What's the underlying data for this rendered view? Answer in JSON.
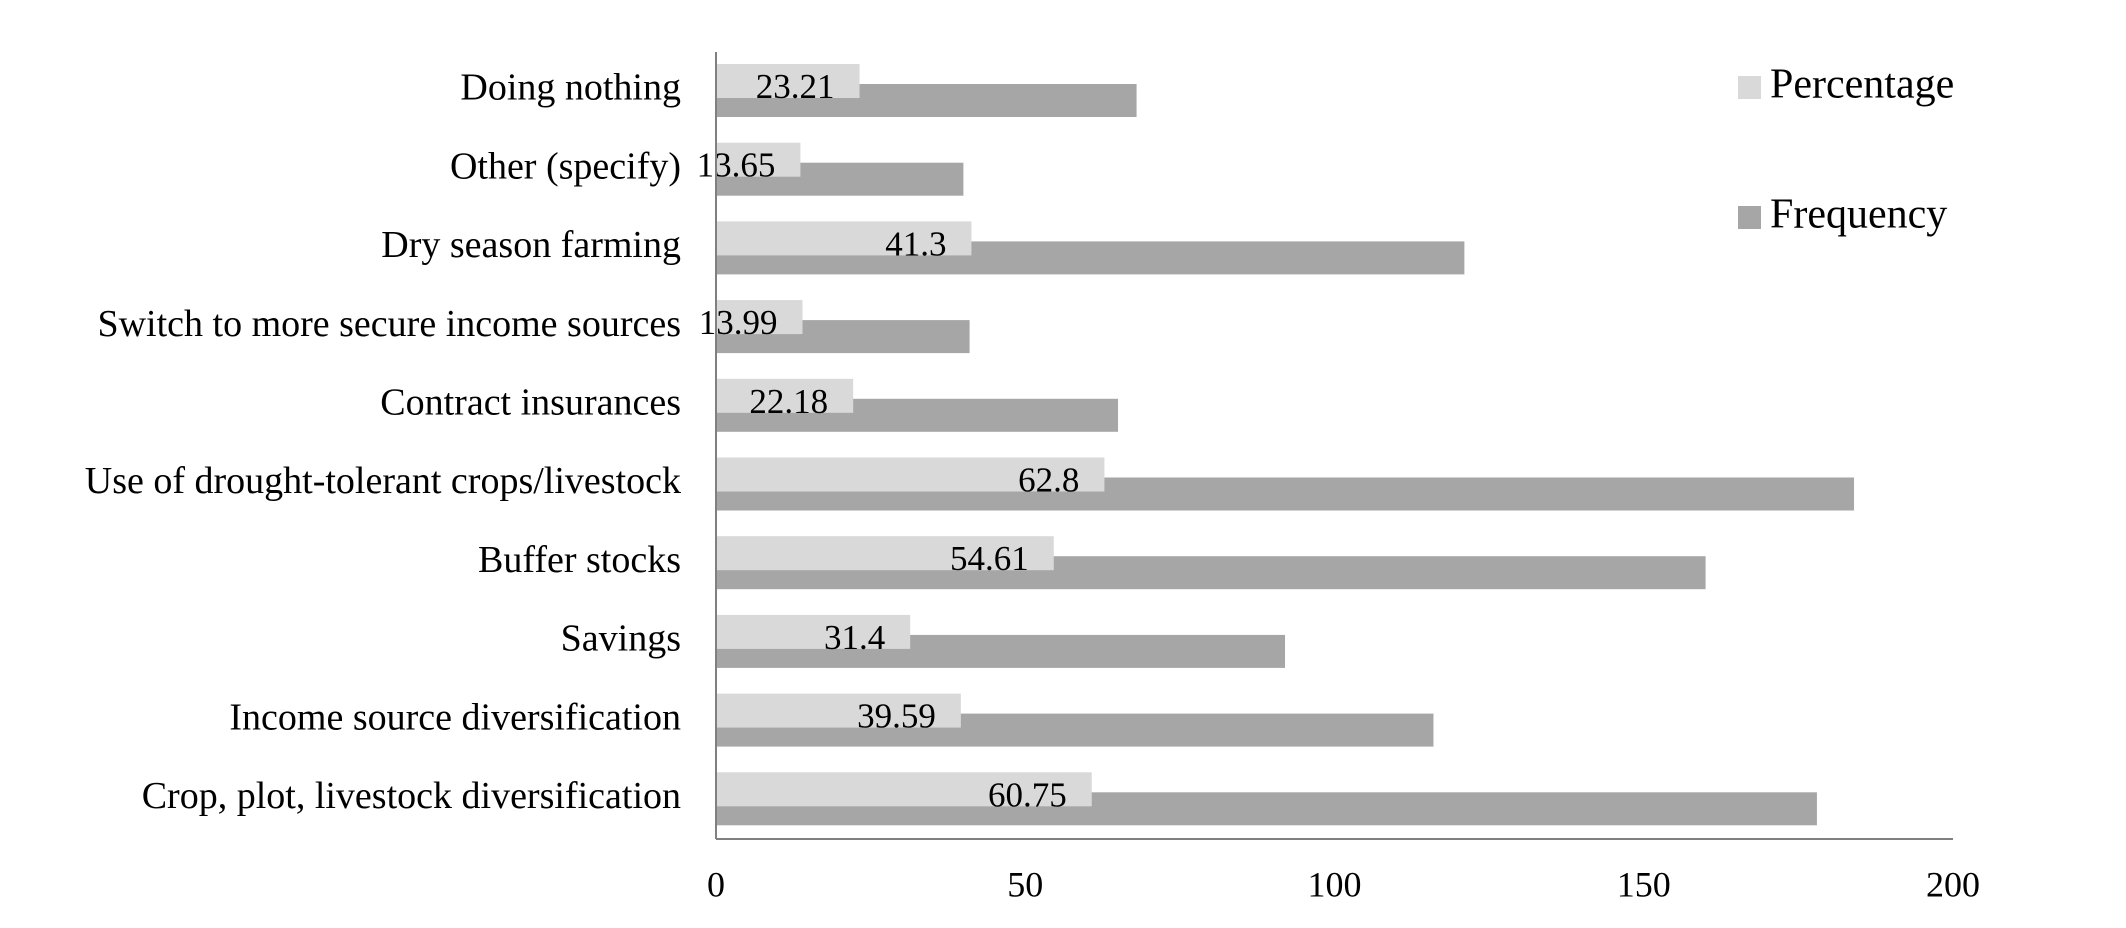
{
  "chart_data": {
    "type": "hbar",
    "categories": [
      "Doing nothing",
      "Other (specify)",
      "Dry season farming",
      "Switch to more secure income sources",
      "Contract insurances",
      "Use of drought-tolerant crops/livestock",
      "Buffer stocks",
      "Savings",
      "Income source diversification",
      "Crop, plot, livestock diversification"
    ],
    "series": [
      {
        "name": "Percentage",
        "color": "#d9d9d9",
        "values": [
          23.21,
          13.65,
          41.3,
          13.99,
          22.18,
          62.8,
          54.61,
          31.4,
          39.59,
          60.75
        ],
        "data_labels": true
      },
      {
        "name": "Frequency",
        "color": "#a6a6a6",
        "values": [
          68,
          40,
          121,
          41,
          65,
          184,
          160,
          92,
          116,
          178
        ]
      }
    ],
    "xlim": [
      0,
      200
    ],
    "xticks": [
      0,
      50,
      100,
      150,
      200
    ],
    "grid": false,
    "legend": "top-right"
  }
}
